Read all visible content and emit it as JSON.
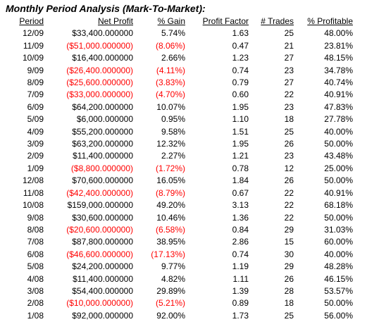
{
  "title": "Monthly Period Analysis (Mark-To-Market):",
  "colors": {
    "text": "#000000",
    "negative": "#ff0000",
    "background": "#ffffff"
  },
  "headers": {
    "period": "Period",
    "net_profit": "Net Profit",
    "pct_gain": "% Gain",
    "profit_factor": "Profit Factor",
    "trades": "# Trades",
    "pct_profitable": "% Profitable"
  },
  "rows": [
    {
      "period": "12/09",
      "net_profit": "$33,400.000000",
      "pct_gain": "5.74%",
      "profit_factor": "1.63",
      "trades": "25",
      "pct_profitable": "48.00%",
      "negative": false
    },
    {
      "period": "11/09",
      "net_profit": "($51,000.000000)",
      "pct_gain": "(8.06%)",
      "profit_factor": "0.47",
      "trades": "21",
      "pct_profitable": "23.81%",
      "negative": true
    },
    {
      "period": "10/09",
      "net_profit": "$16,400.000000",
      "pct_gain": "2.66%",
      "profit_factor": "1.23",
      "trades": "27",
      "pct_profitable": "48.15%",
      "negative": false
    },
    {
      "period": "9/09",
      "net_profit": "($26,400.000000)",
      "pct_gain": "(4.11%)",
      "profit_factor": "0.74",
      "trades": "23",
      "pct_profitable": "34.78%",
      "negative": true
    },
    {
      "period": "8/09",
      "net_profit": "($25,600.000000)",
      "pct_gain": "(3.83%)",
      "profit_factor": "0.79",
      "trades": "27",
      "pct_profitable": "40.74%",
      "negative": true
    },
    {
      "period": "7/09",
      "net_profit": "($33,000.000000)",
      "pct_gain": "(4.70%)",
      "profit_factor": "0.60",
      "trades": "22",
      "pct_profitable": "40.91%",
      "negative": true
    },
    {
      "period": "6/09",
      "net_profit": "$64,200.000000",
      "pct_gain": "10.07%",
      "profit_factor": "1.95",
      "trades": "23",
      "pct_profitable": "47.83%",
      "negative": false
    },
    {
      "period": "5/09",
      "net_profit": "$6,000.000000",
      "pct_gain": "0.95%",
      "profit_factor": "1.10",
      "trades": "18",
      "pct_profitable": "27.78%",
      "negative": false
    },
    {
      "period": "4/09",
      "net_profit": "$55,200.000000",
      "pct_gain": "9.58%",
      "profit_factor": "1.51",
      "trades": "25",
      "pct_profitable": "40.00%",
      "negative": false
    },
    {
      "period": "3/09",
      "net_profit": "$63,200.000000",
      "pct_gain": "12.32%",
      "profit_factor": "1.95",
      "trades": "26",
      "pct_profitable": "50.00%",
      "negative": false
    },
    {
      "period": "2/09",
      "net_profit": "$11,400.000000",
      "pct_gain": "2.27%",
      "profit_factor": "1.21",
      "trades": "23",
      "pct_profitable": "43.48%",
      "negative": false
    },
    {
      "period": "1/09",
      "net_profit": "($8,800.000000)",
      "pct_gain": "(1.72%)",
      "profit_factor": "0.78",
      "trades": "12",
      "pct_profitable": "25.00%",
      "negative": true
    },
    {
      "period": "12/08",
      "net_profit": "$70,600.000000",
      "pct_gain": "16.05%",
      "profit_factor": "1.84",
      "trades": "26",
      "pct_profitable": "50.00%",
      "negative": false
    },
    {
      "period": "11/08",
      "net_profit": "($42,400.000000)",
      "pct_gain": "(8.79%)",
      "profit_factor": "0.67",
      "trades": "22",
      "pct_profitable": "40.91%",
      "negative": true
    },
    {
      "period": "10/08",
      "net_profit": "$159,000.000000",
      "pct_gain": "49.20%",
      "profit_factor": "3.13",
      "trades": "22",
      "pct_profitable": "68.18%",
      "negative": false
    },
    {
      "period": "9/08",
      "net_profit": "$30,600.000000",
      "pct_gain": "10.46%",
      "profit_factor": "1.36",
      "trades": "22",
      "pct_profitable": "50.00%",
      "negative": false
    },
    {
      "period": "8/08",
      "net_profit": "($20,600.000000)",
      "pct_gain": "(6.58%)",
      "profit_factor": "0.84",
      "trades": "29",
      "pct_profitable": "31.03%",
      "negative": true
    },
    {
      "period": "7/08",
      "net_profit": "$87,800.000000",
      "pct_gain": "38.95%",
      "profit_factor": "2.86",
      "trades": "15",
      "pct_profitable": "60.00%",
      "negative": false
    },
    {
      "period": "6/08",
      "net_profit": "($46,600.000000)",
      "pct_gain": "(17.13%)",
      "profit_factor": "0.74",
      "trades": "30",
      "pct_profitable": "40.00%",
      "negative": true
    },
    {
      "period": "5/08",
      "net_profit": "$24,200.000000",
      "pct_gain": "9.77%",
      "profit_factor": "1.19",
      "trades": "29",
      "pct_profitable": "48.28%",
      "negative": false
    },
    {
      "period": "4/08",
      "net_profit": "$11,400.000000",
      "pct_gain": "4.82%",
      "profit_factor": "1.11",
      "trades": "26",
      "pct_profitable": "46.15%",
      "negative": false
    },
    {
      "period": "3/08",
      "net_profit": "$54,400.000000",
      "pct_gain": "29.89%",
      "profit_factor": "1.39",
      "trades": "28",
      "pct_profitable": "53.57%",
      "negative": false
    },
    {
      "period": "2/08",
      "net_profit": "($10,000.000000)",
      "pct_gain": "(5.21%)",
      "profit_factor": "0.89",
      "trades": "18",
      "pct_profitable": "50.00%",
      "negative": true
    },
    {
      "period": "1/08",
      "net_profit": "$92,000.000000",
      "pct_gain": "92.00%",
      "profit_factor": "1.73",
      "trades": "25",
      "pct_profitable": "56.00%",
      "negative": false
    }
  ]
}
